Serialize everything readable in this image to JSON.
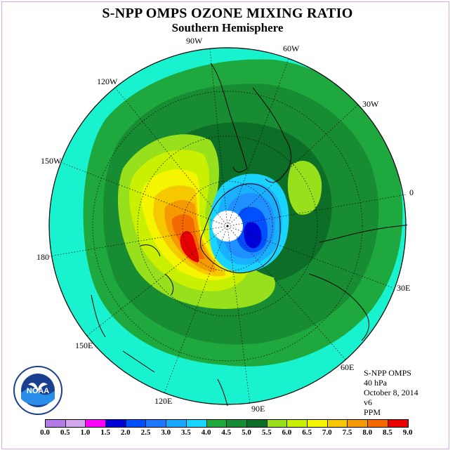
{
  "header": {
    "title": "S-NPP OMPS OZONE MIXING RATIO",
    "subtitle": "Southern Hemisphere"
  },
  "map": {
    "projection": "south-polar-stereographic",
    "longitude_labels": [
      "90W",
      "60W",
      "30W",
      "0",
      "30E",
      "60E",
      "90E",
      "120E",
      "150E",
      "180",
      "150W",
      "120W"
    ],
    "ozone_fields": [
      {
        "level": "3.5-4.0 ppm",
        "region": "outer ring"
      },
      {
        "level": "4.0-4.5 ppm",
        "region": "mid-latitude band"
      },
      {
        "level": "4.5-5.0 ppm",
        "region": "subpolar band"
      },
      {
        "level": "5.5-6.0 ppm",
        "region": "collar around vortex"
      },
      {
        "level": "8.0-8.5 ppm",
        "region": "maximum near 160E-170W"
      },
      {
        "level": "1.5-2.0 ppm",
        "region": "vortex minimum near pole"
      }
    ],
    "colors": {
      "c35": "#19f2cf",
      "c40": "#1fa83e",
      "c45": "#178c32",
      "c50": "#0d6e28",
      "c55": "#99e01c",
      "c60": "#c8f000",
      "c65": "#f5f500",
      "c70": "#f5c800",
      "c75": "#f59a00",
      "c80": "#f56a00",
      "c85": "#e80000",
      "low1": "#1e90ff",
      "low2": "#0050ff",
      "low3": "#0000d8",
      "low4": "#19b0ff",
      "low5": "#19d4ff"
    }
  },
  "info": {
    "instrument": "S-NPP OMPS",
    "pressure": "40 hPa",
    "date": "October 8, 2014",
    "version": "v6",
    "units": "PPM"
  },
  "logo": {
    "name": "NOAA"
  },
  "colorbar": {
    "ticks": [
      "0.0",
      "0.5",
      "1.0",
      "1.5",
      "2.0",
      "2.5",
      "3.0",
      "3.5",
      "4.0",
      "4.5",
      "5.0",
      "5.5",
      "6.0",
      "6.5",
      "7.0",
      "7.5",
      "8.0",
      "8.5",
      "9.0"
    ],
    "colors": [
      "#b37be6",
      "#d4a6ee",
      "#ff00ff",
      "#0000d8",
      "#0050ff",
      "#1e78ff",
      "#19a8ff",
      "#19d4ff",
      "#1fa83e",
      "#178c32",
      "#0d6e28",
      "#99e01c",
      "#c8f000",
      "#f5f500",
      "#f5c800",
      "#f59a00",
      "#f56a00",
      "#e80000",
      "#8b5a32"
    ]
  }
}
